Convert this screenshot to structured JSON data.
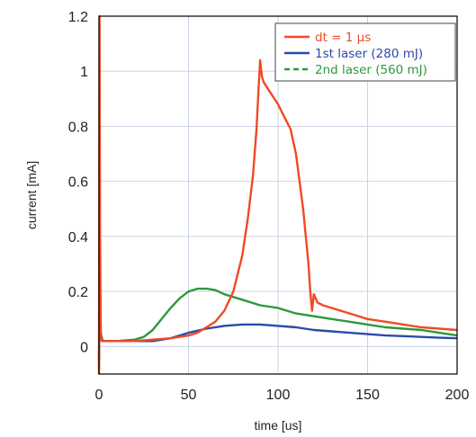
{
  "chart_data": {
    "type": "line",
    "xlabel": "time [us]",
    "ylabel": "current [mA]",
    "xlim": [
      0,
      200
    ],
    "ylim": [
      -0.1,
      1.2
    ],
    "x_ticks": [
      0,
      50,
      100,
      150,
      200
    ],
    "x_tick_labels": [
      "0",
      "50",
      "100",
      "150",
      "200"
    ],
    "y_ticks": [
      0,
      0.2,
      0.4,
      0.6,
      0.8,
      1,
      1.2
    ],
    "y_tick_labels": [
      "0",
      "0.2",
      "0.4",
      "0.6",
      "0.8",
      "1",
      "1.2"
    ],
    "grid": true,
    "legend_position": "top-right",
    "series": [
      {
        "name": "dt = 1 µs",
        "color": "#f04a24",
        "dash": "solid",
        "x": [
          0,
          0.3,
          0.6,
          1,
          1.5,
          3,
          10,
          20,
          30,
          40,
          50,
          55,
          60,
          65,
          70,
          75,
          80,
          83,
          86,
          88,
          89,
          90,
          91,
          92,
          95,
          100,
          103,
          107,
          110,
          114,
          117,
          118,
          119,
          120,
          122,
          125,
          130,
          140,
          150,
          160,
          170,
          180,
          190,
          200
        ],
        "y": [
          -0.1,
          1.2,
          0.4,
          0.05,
          0.02,
          0.02,
          0.02,
          0.02,
          0.025,
          0.03,
          0.04,
          0.05,
          0.07,
          0.09,
          0.13,
          0.2,
          0.33,
          0.46,
          0.62,
          0.79,
          0.92,
          1.04,
          0.98,
          0.96,
          0.93,
          0.88,
          0.84,
          0.79,
          0.7,
          0.5,
          0.3,
          0.2,
          0.13,
          0.19,
          0.16,
          0.15,
          0.14,
          0.12,
          0.1,
          0.09,
          0.08,
          0.07,
          0.065,
          0.06
        ]
      },
      {
        "name": "1st laser (280 mJ)",
        "color": "#2a4aa8",
        "dash": "solid",
        "x": [
          0,
          0.5,
          1,
          2,
          10,
          20,
          30,
          40,
          50,
          60,
          70,
          80,
          90,
          100,
          110,
          120,
          130,
          140,
          150,
          160,
          170,
          180,
          190,
          200
        ],
        "y": [
          -0.05,
          0.25,
          0.04,
          0.02,
          0.02,
          0.02,
          0.02,
          0.03,
          0.05,
          0.065,
          0.075,
          0.08,
          0.08,
          0.075,
          0.07,
          0.06,
          0.055,
          0.05,
          0.045,
          0.04,
          0.038,
          0.035,
          0.032,
          0.03
        ]
      },
      {
        "name": "2nd laser (560 mJ)",
        "color": "#2a9a3c",
        "dash": "dashed",
        "x": [
          0,
          0.5,
          1,
          2,
          10,
          20,
          25,
          30,
          35,
          40,
          45,
          50,
          55,
          60,
          65,
          70,
          75,
          80,
          90,
          100,
          110,
          120,
          130,
          140,
          150,
          160,
          170,
          180,
          190,
          200
        ],
        "y": [
          -0.08,
          0.32,
          0.05,
          0.02,
          0.02,
          0.025,
          0.035,
          0.06,
          0.1,
          0.14,
          0.175,
          0.2,
          0.21,
          0.21,
          0.205,
          0.19,
          0.18,
          0.17,
          0.15,
          0.14,
          0.12,
          0.11,
          0.1,
          0.09,
          0.08,
          0.07,
          0.065,
          0.06,
          0.05,
          0.04
        ]
      }
    ]
  }
}
